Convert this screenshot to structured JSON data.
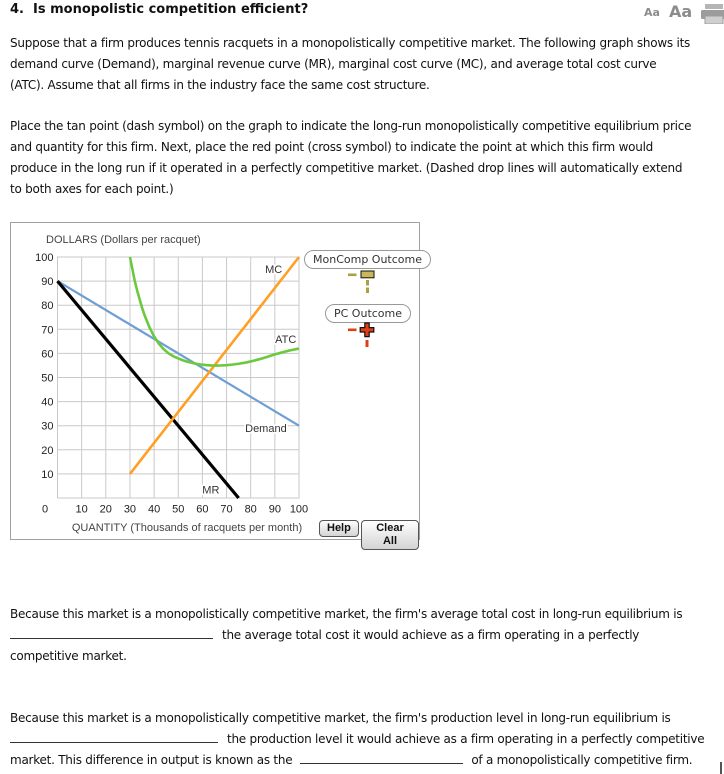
{
  "header": {
    "title": "4.  Is monopolistic competition efficient?",
    "font_small": "Aa",
    "font_large": "Aa"
  },
  "paragraphs": {
    "p1": [
      "Suppose that a firm produces tennis racquets in a monopolistically competitive market. The following graph shows its",
      "demand curve (Demand), marginal revenue curve (MR), marginal cost curve (MC), and average total cost curve",
      "(ATC). Assume that all firms in the industry face the same cost structure."
    ],
    "p2": [
      "Place the tan point (dash symbol) on the graph to indicate the long-run monopolistically competitive equilibrium price",
      "and quantity for this firm. Next, place the red point (cross symbol) to indicate the point at which this firm would",
      "produce in the long run if it operated in a perfectly competitive market. (Dashed drop lines will automatically extend",
      "to both axes for each point.)"
    ]
  },
  "colors": {
    "demand": "#6d9fd4",
    "mr": "#000000",
    "mc": "#ffa025",
    "atc": "#6cc93e",
    "tan_point": "#a8a23f",
    "tan_fill": "#cbb65a",
    "pc_point": "#dd4018",
    "grid": "#c9c9c9",
    "panel_border": "#a0a0a0"
  },
  "chart_data": {
    "type": "line",
    "title": "DOLLARS (Dollars per racquet)",
    "xlabel": "QUANTITY (Thousands of racquets per month)",
    "xlim": [
      0,
      100
    ],
    "ylim": [
      0,
      100
    ],
    "grid": true,
    "x_ticks": [
      0,
      10,
      20,
      30,
      40,
      50,
      60,
      70,
      80,
      90,
      100
    ],
    "y_ticks": [
      10,
      20,
      30,
      40,
      50,
      60,
      70,
      80,
      90,
      100
    ],
    "series": [
      {
        "name": "Demand",
        "color": "#6d9fd4",
        "width": 2.2,
        "points": [
          [
            0,
            90
          ],
          [
            100,
            30
          ]
        ],
        "label_pos": [
          86.3,
          29
        ]
      },
      {
        "name": "MR",
        "color": "#000000",
        "width": 3.2,
        "points": [
          [
            0,
            90
          ],
          [
            75,
            0
          ]
        ],
        "label_pos": [
          63.5,
          3.6
        ]
      },
      {
        "name": "MC",
        "color": "#ffa025",
        "width": 2.6,
        "points": [
          [
            30,
            10
          ],
          [
            100,
            100
          ]
        ],
        "label_pos": [
          89.5,
          95
        ]
      },
      {
        "name": "ATC",
        "color": "#6cc93e",
        "width": 2.6,
        "points": [
          [
            30,
            100
          ],
          [
            31,
            95
          ],
          [
            32,
            90
          ],
          [
            33,
            86
          ],
          [
            34,
            82.5
          ],
          [
            35,
            79
          ],
          [
            36,
            76
          ],
          [
            38,
            71
          ],
          [
            40,
            67
          ],
          [
            42,
            64
          ],
          [
            44,
            61.7
          ],
          [
            46,
            60
          ],
          [
            48,
            58.8
          ],
          [
            50,
            57.9
          ],
          [
            52,
            57.1
          ],
          [
            54,
            56.5
          ],
          [
            56,
            56
          ],
          [
            58,
            55.6
          ],
          [
            60,
            55.3
          ],
          [
            62,
            55.1
          ],
          [
            64,
            55
          ],
          [
            66,
            54.95
          ],
          [
            68,
            55
          ],
          [
            70,
            55.1
          ],
          [
            72,
            55.3
          ],
          [
            75,
            55.7
          ],
          [
            78,
            56.2
          ],
          [
            81,
            56.9
          ],
          [
            84,
            57.7
          ],
          [
            87,
            58.6
          ],
          [
            90,
            59.6
          ],
          [
            93,
            60.4
          ],
          [
            96,
            61.2
          ],
          [
            100,
            62
          ]
        ],
        "label_pos": [
          94.5,
          66
        ]
      }
    ]
  },
  "legend": {
    "moncomp_label": "MonComp Outcome",
    "pc_label": "PC Outcome"
  },
  "buttons": {
    "help": "Help",
    "clear": "Clear All"
  },
  "q1": {
    "line1": "Because this market is a monopolistically competitive market, the firm's average total cost in long-run equilibrium is",
    "after_blank": "the average total cost it would achieve as a firm operating in a perfectly",
    "line3": "competitive market."
  },
  "q2": {
    "line1": "Because this market is a monopolistically competitive market, the firm's production level in long-run equilibrium is",
    "after_blank": "the production level it would achieve as a firm operating in a perfectly competitive",
    "line3_pre": "market. This difference in output is known as the",
    "line3_post": "of a monopolistically competitive firm."
  }
}
